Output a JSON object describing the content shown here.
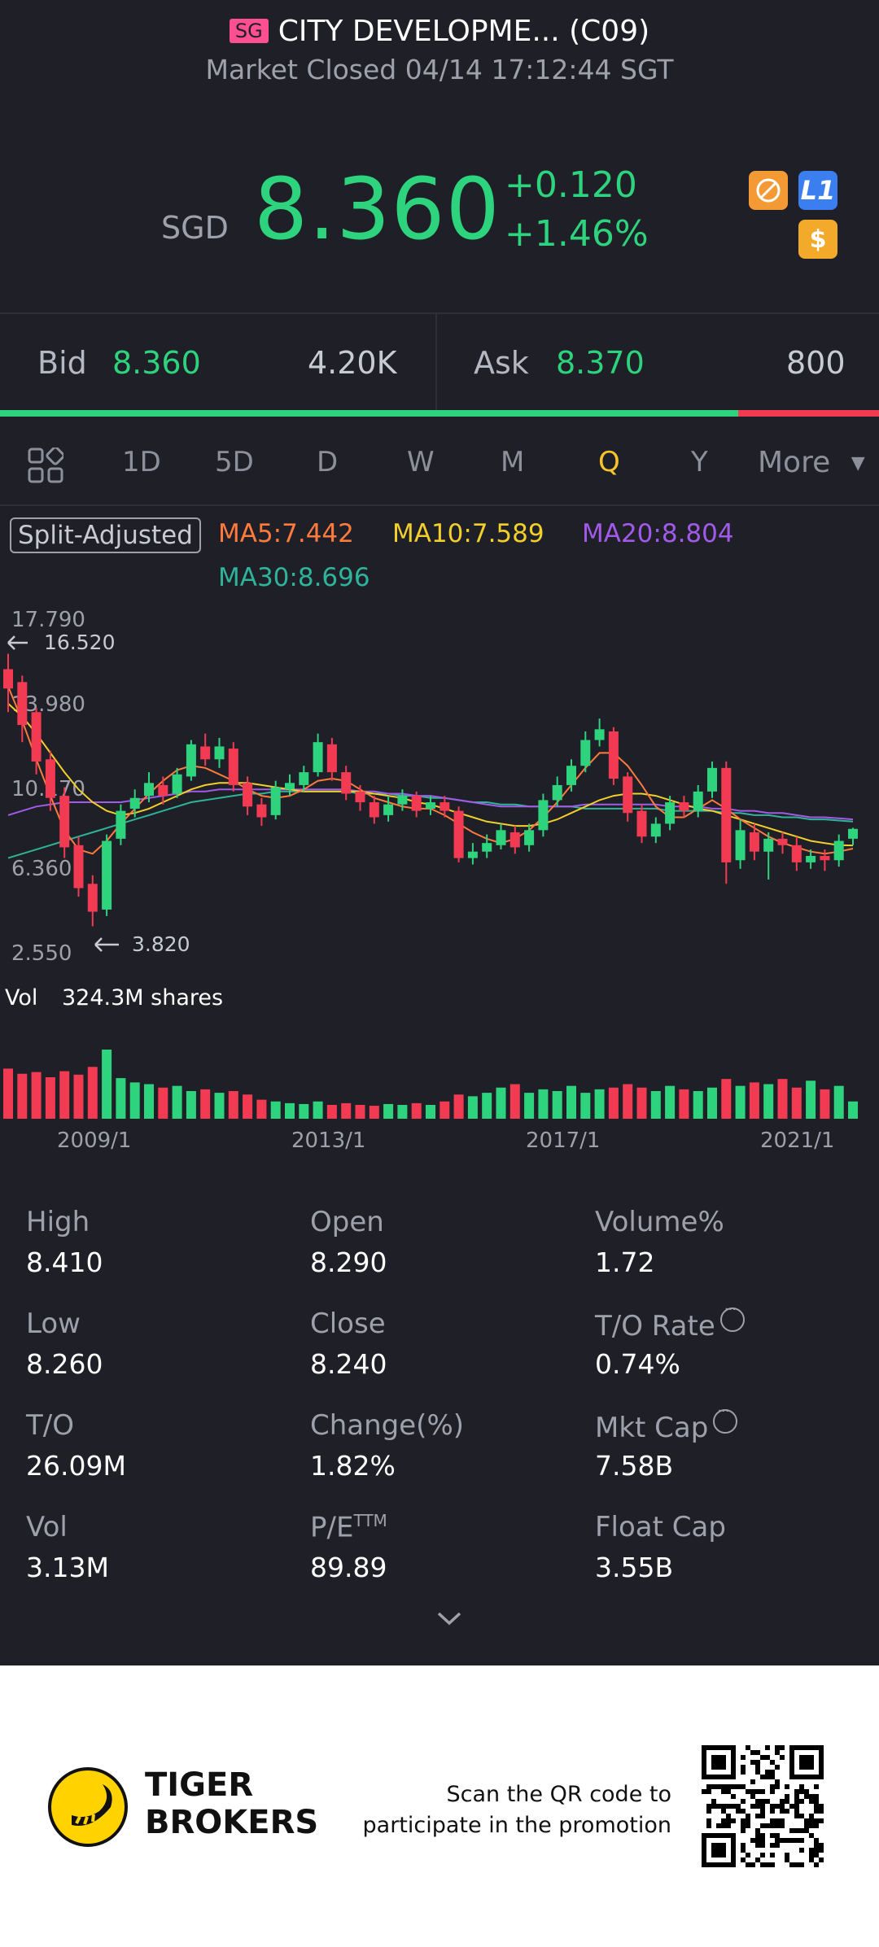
{
  "header": {
    "badge": "SG",
    "title": "CITY DEVELOPME... (C09)",
    "status": "Market Closed 04/14 17:12:44 SGT"
  },
  "quote": {
    "currency": "SGD",
    "price": "8.360",
    "change": "+0.120",
    "change_pct": "+1.46%",
    "icons": [
      "no-trading-icon",
      "level1-icon",
      "dollar-icon"
    ],
    "level_badge": "L1",
    "dollar_badge": "$"
  },
  "bid_ask": {
    "bid_label": "Bid",
    "bid_price": "8.360",
    "bid_size": "4.20K",
    "ask_label": "Ask",
    "ask_price": "8.370",
    "ask_size": "800",
    "bid_share": 0.84
  },
  "tabs": {
    "items": [
      "1D",
      "5D",
      "D",
      "W",
      "M",
      "Q",
      "Y"
    ],
    "active": "Q",
    "more": "More"
  },
  "indicators": {
    "split": "Split-Adjusted",
    "ma5": "MA5:7.442",
    "ma10": "MA10:7.589",
    "ma20": "MA20:8.804",
    "ma30": "MA30:8.696",
    "colors": {
      "ma5": "#ff7a3d",
      "ma10": "#f2cf2b",
      "ma20": "#a25be8",
      "ma30": "#2fb39a",
      "up": "#2ed37e",
      "down": "#f23b52"
    }
  },
  "chart_data": {
    "type": "candlestick",
    "y_ticks": [
      "17.790",
      "13.980",
      "10.170",
      "6.360",
      "2.550"
    ],
    "ylim": [
      2.55,
      17.79
    ],
    "max_label": "16.520",
    "min_label": "3.820",
    "x_labels": [
      "2009/1",
      "2013/1",
      "2017/1",
      "2021/1"
    ],
    "volume_label": "Vol",
    "volume_value": "324.3M shares",
    "candles": [
      {
        "o": 15.8,
        "c": 14.9,
        "h": 16.52,
        "l": 13.8
      },
      {
        "o": 15.2,
        "c": 13.2,
        "h": 15.5,
        "l": 12.4
      },
      {
        "o": 13.8,
        "c": 11.5,
        "h": 14.0,
        "l": 10.9
      },
      {
        "o": 11.6,
        "c": 9.8,
        "h": 12.0,
        "l": 9.2
      },
      {
        "o": 9.9,
        "c": 7.5,
        "h": 10.3,
        "l": 7.0
      },
      {
        "o": 7.6,
        "c": 5.6,
        "h": 8.0,
        "l": 5.2
      },
      {
        "o": 5.8,
        "c": 4.5,
        "h": 6.2,
        "l": 3.82
      },
      {
        "o": 4.6,
        "c": 7.8,
        "h": 8.1,
        "l": 4.3
      },
      {
        "o": 7.9,
        "c": 9.2,
        "h": 9.5,
        "l": 7.6
      },
      {
        "o": 9.3,
        "c": 9.8,
        "h": 10.2,
        "l": 8.9
      },
      {
        "o": 9.9,
        "c": 10.5,
        "h": 11.0,
        "l": 9.6
      },
      {
        "o": 10.4,
        "c": 9.9,
        "h": 10.8,
        "l": 9.5
      },
      {
        "o": 10.0,
        "c": 10.9,
        "h": 11.2,
        "l": 9.8
      },
      {
        "o": 10.8,
        "c": 12.3,
        "h": 12.5,
        "l": 10.6
      },
      {
        "o": 12.2,
        "c": 11.6,
        "h": 12.8,
        "l": 11.3
      },
      {
        "o": 11.6,
        "c": 12.2,
        "h": 12.6,
        "l": 11.2
      },
      {
        "o": 12.1,
        "c": 10.4,
        "h": 12.4,
        "l": 10.1
      },
      {
        "o": 10.5,
        "c": 9.4,
        "h": 10.8,
        "l": 9.0
      },
      {
        "o": 9.5,
        "c": 8.9,
        "h": 9.8,
        "l": 8.5
      },
      {
        "o": 9.0,
        "c": 10.3,
        "h": 10.6,
        "l": 8.8
      },
      {
        "o": 10.2,
        "c": 10.5,
        "h": 10.9,
        "l": 9.9
      },
      {
        "o": 10.4,
        "c": 11.0,
        "h": 11.3,
        "l": 10.1
      },
      {
        "o": 11.0,
        "c": 12.4,
        "h": 12.8,
        "l": 10.8
      },
      {
        "o": 12.3,
        "c": 11.0,
        "h": 12.6,
        "l": 10.6
      },
      {
        "o": 11.0,
        "c": 10.0,
        "h": 11.3,
        "l": 9.7
      },
      {
        "o": 10.1,
        "c": 9.6,
        "h": 10.4,
        "l": 9.2
      },
      {
        "o": 9.6,
        "c": 8.9,
        "h": 9.9,
        "l": 8.6
      },
      {
        "o": 9.0,
        "c": 9.5,
        "h": 9.9,
        "l": 8.7
      },
      {
        "o": 9.5,
        "c": 9.9,
        "h": 10.2,
        "l": 9.2
      },
      {
        "o": 9.9,
        "c": 9.2,
        "h": 10.1,
        "l": 8.9
      },
      {
        "o": 9.3,
        "c": 9.6,
        "h": 9.9,
        "l": 9.0
      },
      {
        "o": 9.6,
        "c": 9.2,
        "h": 9.9,
        "l": 8.9
      },
      {
        "o": 9.2,
        "c": 7.0,
        "h": 9.4,
        "l": 6.8
      },
      {
        "o": 7.0,
        "c": 7.3,
        "h": 7.7,
        "l": 6.7
      },
      {
        "o": 7.3,
        "c": 7.7,
        "h": 8.1,
        "l": 7.0
      },
      {
        "o": 7.6,
        "c": 8.3,
        "h": 8.6,
        "l": 7.4
      },
      {
        "o": 8.2,
        "c": 7.5,
        "h": 8.5,
        "l": 7.2
      },
      {
        "o": 7.6,
        "c": 8.3,
        "h": 8.6,
        "l": 7.3
      },
      {
        "o": 8.3,
        "c": 9.7,
        "h": 10.0,
        "l": 8.0
      },
      {
        "o": 9.7,
        "c": 10.4,
        "h": 10.8,
        "l": 9.4
      },
      {
        "o": 10.4,
        "c": 11.3,
        "h": 11.6,
        "l": 10.1
      },
      {
        "o": 11.3,
        "c": 12.5,
        "h": 12.9,
        "l": 11.0
      },
      {
        "o": 12.5,
        "c": 13.0,
        "h": 13.5,
        "l": 12.2
      },
      {
        "o": 12.9,
        "c": 10.7,
        "h": 13.1,
        "l": 10.4
      },
      {
        "o": 10.8,
        "c": 9.1,
        "h": 11.0,
        "l": 8.7
      },
      {
        "o": 9.2,
        "c": 8.0,
        "h": 9.5,
        "l": 7.7
      },
      {
        "o": 8.0,
        "c": 8.6,
        "h": 8.9,
        "l": 7.7
      },
      {
        "o": 8.6,
        "c": 9.6,
        "h": 9.9,
        "l": 8.3
      },
      {
        "o": 9.6,
        "c": 9.2,
        "h": 9.9,
        "l": 8.9
      },
      {
        "o": 9.2,
        "c": 10.1,
        "h": 10.4,
        "l": 8.9
      },
      {
        "o": 10.1,
        "c": 11.2,
        "h": 11.5,
        "l": 9.8
      },
      {
        "o": 11.2,
        "c": 6.8,
        "h": 11.5,
        "l": 5.8
      },
      {
        "o": 6.9,
        "c": 8.3,
        "h": 8.8,
        "l": 6.5
      },
      {
        "o": 8.2,
        "c": 7.3,
        "h": 8.6,
        "l": 6.9
      },
      {
        "o": 7.3,
        "c": 7.9,
        "h": 8.2,
        "l": 6.0
      },
      {
        "o": 7.9,
        "c": 7.6,
        "h": 8.2,
        "l": 7.2
      },
      {
        "o": 7.6,
        "c": 6.8,
        "h": 8.0,
        "l": 6.4
      },
      {
        "o": 6.8,
        "c": 7.1,
        "h": 7.4,
        "l": 6.5
      },
      {
        "o": 7.1,
        "c": 6.9,
        "h": 7.4,
        "l": 6.4
      },
      {
        "o": 6.9,
        "c": 7.8,
        "h": 8.1,
        "l": 6.6
      },
      {
        "o": 7.9,
        "c": 8.36,
        "h": 8.41,
        "l": 7.6
      }
    ],
    "volumes": [
      58,
      52,
      54,
      48,
      55,
      51,
      60,
      80,
      47,
      42,
      40,
      36,
      38,
      32,
      34,
      30,
      32,
      28,
      22,
      20,
      18,
      17,
      20,
      16,
      18,
      16,
      15,
      17,
      16,
      18,
      16,
      20,
      28,
      26,
      30,
      36,
      40,
      30,
      34,
      32,
      38,
      30,
      34,
      36,
      40,
      36,
      32,
      38,
      34,
      32,
      36,
      46,
      38,
      42,
      40,
      46,
      36,
      44,
      34,
      38,
      20
    ],
    "ma5": [
      15.0,
      13.4,
      11.6,
      9.9,
      8.3,
      7.4,
      7.2,
      7.8,
      8.6,
      9.3,
      10.0,
      10.6,
      11.1,
      11.3,
      11.2,
      10.9,
      10.6,
      10.2,
      9.9,
      9.8,
      9.9,
      10.2,
      10.6,
      10.7,
      10.6,
      10.2,
      9.8,
      9.6,
      9.4,
      9.3,
      9.3,
      9.0,
      8.6,
      8.2,
      7.9,
      7.7,
      7.9,
      8.3,
      8.9,
      9.6,
      10.4,
      11.2,
      11.9,
      11.9,
      11.3,
      10.4,
      9.4,
      8.9,
      8.9,
      9.3,
      9.7,
      9.3,
      8.8,
      8.4,
      8.0,
      7.7,
      7.5,
      7.3,
      7.2,
      7.3,
      7.44
    ],
    "ma10": [
      14.2,
      13.6,
      12.8,
      11.9,
      11.0,
      10.2,
      9.6,
      9.2,
      9.0,
      9.1,
      9.3,
      9.6,
      9.9,
      10.2,
      10.4,
      10.5,
      10.5,
      10.5,
      10.4,
      10.3,
      10.2,
      10.1,
      10.1,
      10.1,
      10.1,
      10.1,
      10.0,
      9.9,
      9.8,
      9.6,
      9.5,
      9.3,
      9.1,
      8.9,
      8.7,
      8.6,
      8.5,
      8.5,
      8.6,
      8.8,
      9.1,
      9.4,
      9.7,
      9.9,
      10.0,
      10.0,
      9.9,
      9.7,
      9.5,
      9.3,
      9.2,
      9.0,
      8.8,
      8.6,
      8.4,
      8.2,
      8.0,
      7.8,
      7.7,
      7.6,
      7.59
    ],
    "ma20": [
      9.0,
      9.2,
      9.4,
      9.5,
      9.6,
      9.6,
      9.6,
      9.6,
      9.6,
      9.7,
      9.8,
      9.9,
      10.0,
      10.1,
      10.1,
      10.2,
      10.2,
      10.2,
      10.2,
      10.2,
      10.2,
      10.2,
      10.2,
      10.2,
      10.2,
      10.1,
      10.1,
      10.0,
      10.0,
      9.9,
      9.9,
      9.8,
      9.7,
      9.6,
      9.5,
      9.4,
      9.4,
      9.4,
      9.4,
      9.4,
      9.4,
      9.5,
      9.5,
      9.5,
      9.5,
      9.5,
      9.5,
      9.4,
      9.4,
      9.4,
      9.3,
      9.3,
      9.2,
      9.2,
      9.1,
      9.1,
      9.0,
      8.9,
      8.9,
      8.85,
      8.8
    ],
    "ma30": [
      7.0,
      7.2,
      7.4,
      7.6,
      7.8,
      8.0,
      8.2,
      8.4,
      8.6,
      8.8,
      9.0,
      9.2,
      9.4,
      9.6,
      9.7,
      9.8,
      9.9,
      10.0,
      10.0,
      10.1,
      10.1,
      10.1,
      10.1,
      10.1,
      10.1,
      10.0,
      10.0,
      10.0,
      9.9,
      9.9,
      9.8,
      9.8,
      9.7,
      9.6,
      9.6,
      9.5,
      9.5,
      9.4,
      9.4,
      9.4,
      9.4,
      9.3,
      9.3,
      9.3,
      9.3,
      9.3,
      9.3,
      9.2,
      9.2,
      9.2,
      9.2,
      9.1,
      9.1,
      9.0,
      9.0,
      8.9,
      8.9,
      8.8,
      8.8,
      8.75,
      8.7
    ]
  },
  "stats": [
    {
      "label": "High",
      "value": "8.410"
    },
    {
      "label": "Open",
      "value": "8.290"
    },
    {
      "label": "Volume%",
      "value": "1.72"
    },
    {
      "label": "Low",
      "value": "8.260"
    },
    {
      "label": "Close",
      "value": "8.240"
    },
    {
      "label": "T/O Rate",
      "value": "0.74%"
    },
    {
      "label": "T/O",
      "value": "26.09M"
    },
    {
      "label": "Change(%)",
      "value": "1.82%"
    },
    {
      "label": "Mkt Cap",
      "value": "7.58B"
    },
    {
      "label": "Vol",
      "value": "3.13M"
    },
    {
      "label": "P/E",
      "value": "89.89"
    },
    {
      "label": "Float Cap",
      "value": "3.55B"
    }
  ],
  "pe_suffix": "TTM",
  "footer": {
    "logo_line1": "TIGER",
    "logo_line2": "BROKERS",
    "promo_line1": "Scan the QR code to",
    "promo_line2": "participate in the promotion"
  }
}
